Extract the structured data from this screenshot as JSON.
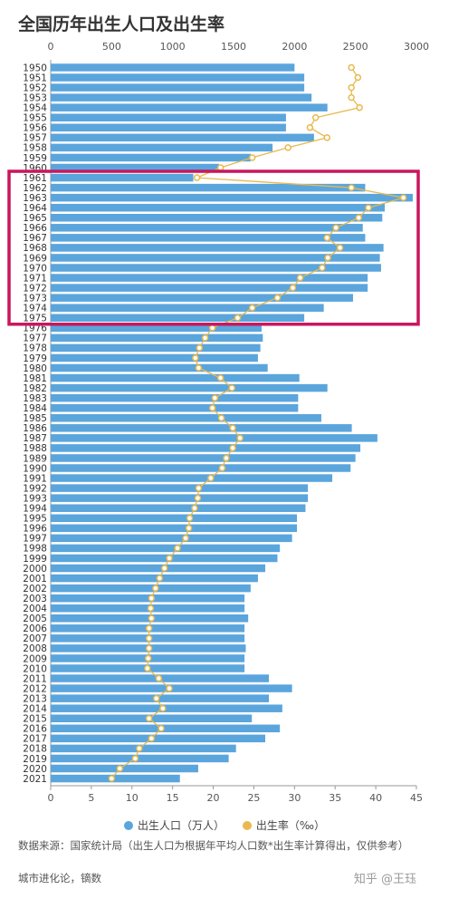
{
  "chart_data": {
    "type": "bar",
    "title": "全国历年出生人口及出生率",
    "categories": [
      "1950",
      "1951",
      "1952",
      "1953",
      "1954",
      "1955",
      "1956",
      "1957",
      "1958",
      "1959",
      "1960",
      "1961",
      "1962",
      "1963",
      "1964",
      "1965",
      "1966",
      "1967",
      "1968",
      "1969",
      "1970",
      "1971",
      "1972",
      "1973",
      "1974",
      "1975",
      "1976",
      "1977",
      "1978",
      "1979",
      "1980",
      "1981",
      "1982",
      "1983",
      "1984",
      "1985",
      "1986",
      "1987",
      "1988",
      "1989",
      "1990",
      "1991",
      "1992",
      "1993",
      "1994",
      "1995",
      "1996",
      "1997",
      "1998",
      "1999",
      "2000",
      "2001",
      "2002",
      "2003",
      "2004",
      "2005",
      "2006",
      "2007",
      "2008",
      "2009",
      "2010",
      "2011",
      "2012",
      "2013",
      "2014",
      "2015",
      "2016",
      "2017",
      "2018",
      "2019",
      "2020",
      "2021"
    ],
    "series": [
      {
        "name": "出生人口（万人）",
        "axis": "top",
        "color": "#5ba5dd",
        "values": [
          2000,
          2080,
          2080,
          2140,
          2270,
          1930,
          1930,
          2160,
          1820,
          1640,
          1380,
          1170,
          2580,
          2970,
          2740,
          2720,
          2560,
          2580,
          2730,
          2700,
          2710,
          2600,
          2600,
          2480,
          2240,
          2080,
          1730,
          1740,
          1720,
          1700,
          1780,
          2040,
          2270,
          2030,
          2030,
          2220,
          2470,
          2680,
          2540,
          2500,
          2460,
          2310,
          2110,
          2110,
          2090,
          2020,
          2020,
          1980,
          1880,
          1860,
          1760,
          1700,
          1640,
          1590,
          1590,
          1620,
          1590,
          1590,
          1600,
          1590,
          1590,
          1790,
          1980,
          1790,
          1900,
          1650,
          1880,
          1760,
          1520,
          1460,
          1210,
          1060
        ],
        "ylim": [
          0,
          3000
        ]
      },
      {
        "name": "出生率（‰）",
        "axis": "bottom",
        "color": "#e8b94f",
        "values": [
          37.0,
          37.8,
          37.0,
          37.0,
          38.0,
          32.6,
          31.9,
          34.0,
          29.2,
          24.8,
          20.9,
          18.0,
          37.0,
          43.4,
          39.1,
          37.9,
          35.1,
          34.0,
          35.6,
          34.1,
          33.4,
          30.7,
          29.8,
          27.9,
          24.8,
          23.0,
          19.9,
          19.0,
          18.3,
          17.8,
          18.2,
          20.9,
          22.3,
          20.2,
          19.9,
          21.0,
          22.4,
          23.3,
          22.4,
          21.6,
          21.1,
          19.7,
          18.2,
          18.1,
          17.7,
          17.1,
          17.0,
          16.6,
          15.6,
          14.6,
          14.0,
          13.4,
          12.9,
          12.4,
          12.3,
          12.4,
          12.1,
          12.1,
          12.1,
          12.0,
          11.9,
          13.3,
          14.6,
          13.0,
          13.8,
          12.1,
          13.6,
          12.4,
          10.9,
          10.4,
          8.5,
          7.5
        ],
        "ylim": [
          0,
          45
        ]
      }
    ],
    "top_axis_ticks": [
      "0",
      "500",
      "1000",
      "1500",
      "2000",
      "2500",
      "3000"
    ],
    "bottom_axis_ticks": [
      "0",
      "5",
      "10",
      "15",
      "20",
      "25",
      "30",
      "35",
      "40",
      "45"
    ],
    "highlight": {
      "from": "1961",
      "to": "1975",
      "color": "#c8175d"
    },
    "legend_position": "bottom-center",
    "grid": false
  },
  "legend": {
    "births": "出生人口（万人）",
    "rate": "出生率（‰）"
  },
  "footer": {
    "source": "数据来源：国家统计局（出生人口为根据年平均人口数*出生率计算得出，仅供参考）",
    "credit": "城市进化论，镝数",
    "brand": "知乎 @王珏"
  }
}
